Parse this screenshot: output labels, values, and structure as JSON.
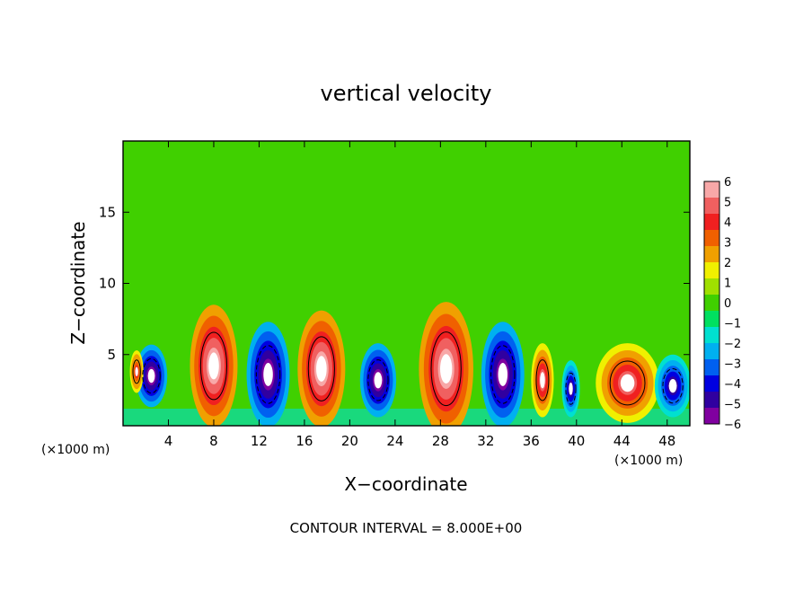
{
  "chart_data": {
    "type": "heatmap",
    "title": "vertical velocity",
    "xlabel": "X−coordinate",
    "ylabel": "Z−coordinate",
    "x_unit_label": "(×1000 m)",
    "y_unit_label": "(×1000 m)",
    "footer": "CONTOUR INTERVAL = 8.000E+00",
    "xlim": [
      0,
      50
    ],
    "ylim": [
      0,
      20
    ],
    "x_ticks": [
      4,
      8,
      12,
      16,
      20,
      24,
      28,
      32,
      36,
      40,
      44,
      48
    ],
    "x_tick_labels": [
      "4",
      "8",
      "12",
      "16",
      "20",
      "24",
      "28",
      "32",
      "36",
      "40",
      "44",
      "48"
    ],
    "y_ticks": [
      5,
      10,
      15
    ],
    "y_tick_labels": [
      "5",
      "10",
      "15"
    ],
    "colorbar": {
      "min": -6,
      "max": 6,
      "ticks": [
        6,
        5,
        4,
        3,
        2,
        1,
        0,
        -1,
        -2,
        -3,
        -4,
        -5,
        -6
      ],
      "tick_labels": [
        "6",
        "5",
        "4",
        "3",
        "2",
        "1",
        "0",
        "−1",
        "−2",
        "−3",
        "−4",
        "−5",
        "−6"
      ],
      "colors": [
        "#8000a0",
        "#3000a0",
        "#0000e0",
        "#0060f0",
        "#00b0f0",
        "#00e0d0",
        "#00e060",
        "#40d000",
        "#a0e000",
        "#f0f000",
        "#f0a000",
        "#f06000",
        "#f02020",
        "#f06060",
        "#f8a8a8"
      ]
    },
    "cells": [
      {
        "x": 2.5,
        "z": 3.5,
        "w": -6,
        "rx": 1.4,
        "rz": 2.2
      },
      {
        "x": 1.2,
        "z": 3.8,
        "w": 4,
        "rx": 0.6,
        "rz": 1.5
      },
      {
        "x": 8.0,
        "z": 4.2,
        "w": 6,
        "rx": 2.1,
        "rz": 4.3
      },
      {
        "x": 12.8,
        "z": 3.6,
        "w": -6,
        "rx": 1.9,
        "rz": 3.7
      },
      {
        "x": 17.5,
        "z": 4.0,
        "w": 6,
        "rx": 2.1,
        "rz": 4.1
      },
      {
        "x": 22.5,
        "z": 3.2,
        "w": -6,
        "rx": 1.6,
        "rz": 2.6
      },
      {
        "x": 28.5,
        "z": 4.0,
        "w": 6,
        "rx": 2.4,
        "rz": 4.7
      },
      {
        "x": 33.5,
        "z": 3.6,
        "w": -6,
        "rx": 1.9,
        "rz": 3.7
      },
      {
        "x": 37.0,
        "z": 3.2,
        "w": 5,
        "rx": 1.0,
        "rz": 2.6
      },
      {
        "x": 39.5,
        "z": 2.6,
        "w": -5,
        "rx": 0.8,
        "rz": 2.0
      },
      {
        "x": 44.5,
        "z": 3.0,
        "w": 5,
        "rx": 2.8,
        "rz": 2.8
      },
      {
        "x": 48.5,
        "z": 2.8,
        "w": -5,
        "rx": 1.6,
        "rz": 2.2
      }
    ]
  }
}
